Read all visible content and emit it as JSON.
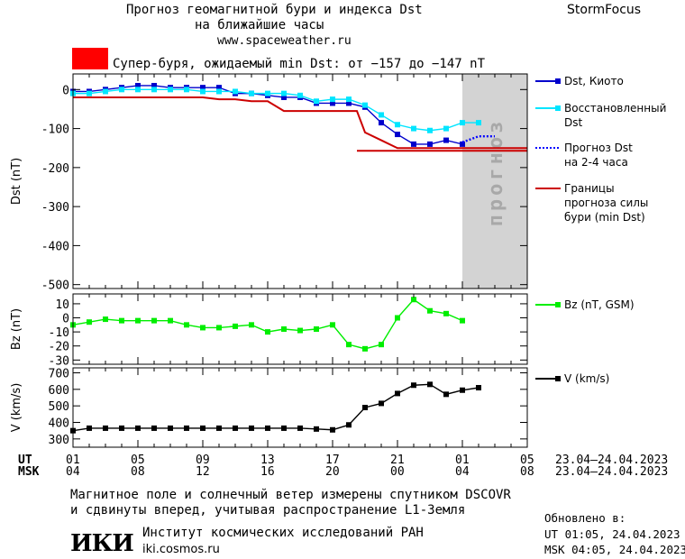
{
  "header": {
    "title_line1": "Прогноз геомагнитной бури и индекса Dst",
    "title_line2": "на ближайшие часы",
    "website": "www.spaceweather.ru",
    "brand": "StormFocus"
  },
  "alert": {
    "color": "#ff0000",
    "text": "Супер-буря, ожидаемый min Dst: от −157 до −147 nT"
  },
  "forecast_band_label": "прогноз",
  "legend": {
    "dst_kyoto": "Dst, Киото",
    "dst_restored_1": "Восстановленный",
    "dst_restored_2": "Dst",
    "dst_forecast_1": "Прогноз Dst",
    "dst_forecast_2": "на 2-4 часа",
    "bounds_1": "Границы",
    "bounds_2": "прогноза силы",
    "bounds_3": "бури (min Dst)",
    "bz": "Bz (nT, GSM)",
    "v": "V (km/s)"
  },
  "time_axis": {
    "ut_label": "UT",
    "msk_label": "MSK",
    "ut_ticks": [
      "01",
      "05",
      "09",
      "13",
      "17",
      "21",
      "01",
      "05"
    ],
    "msk_ticks": [
      "04",
      "08",
      "12",
      "16",
      "20",
      "00",
      "04",
      "08"
    ],
    "ut_range": "23.04–24.04.2023",
    "msk_range": "23.04–24.04.2023"
  },
  "footer": {
    "note_line1": "Магнитное поле и солнечный ветер измерены спутником DSCOVR",
    "note_line2": "и сдвинуты вперед, учитывая распространение L1-Земля",
    "logo_text": "ИКИ",
    "institute": "Институт космических исследований РАН",
    "institute_url": "iki.cosmos.ru",
    "updated_label": "Обновлено в:",
    "updated_ut": "UT  01:05, 24.04.2023",
    "updated_msk": "MSK 04:05, 24.04.2023"
  },
  "chart_data": [
    {
      "type": "line",
      "ylabel": "Dst (nT)",
      "ylim": [
        -510,
        40
      ],
      "yticks": [
        0,
        -100,
        -200,
        -300,
        -400,
        -500
      ],
      "x_unit": "hours since 23.04 01 UT",
      "xlim": [
        0,
        28
      ],
      "forecast_shade": [
        24,
        28
      ],
      "series": [
        {
          "name": "Dst, Киото",
          "color": "#0000cc",
          "marker": "square",
          "x": [
            0,
            1,
            2,
            3,
            4,
            5,
            6,
            7,
            8,
            9,
            10,
            11,
            12,
            13,
            14,
            15,
            16,
            17,
            18,
            19,
            20,
            21,
            22,
            23,
            24
          ],
          "y": [
            -5,
            -5,
            0,
            5,
            10,
            10,
            5,
            5,
            5,
            5,
            -10,
            -10,
            -15,
            -20,
            -20,
            -35,
            -35,
            -35,
            -45,
            -85,
            -115,
            -140,
            -140,
            -130,
            -140
          ]
        },
        {
          "name": "Восстановленный Dst",
          "color": "#00e5ff",
          "marker": "square",
          "x": [
            0,
            1,
            2,
            3,
            4,
            5,
            6,
            7,
            8,
            9,
            10,
            11,
            12,
            13,
            14,
            15,
            16,
            17,
            18,
            19,
            20,
            21,
            22,
            23,
            24,
            25
          ],
          "y": [
            -10,
            -10,
            -5,
            0,
            0,
            0,
            0,
            0,
            -5,
            -5,
            -5,
            -10,
            -10,
            -10,
            -15,
            -30,
            -25,
            -25,
            -40,
            -65,
            -90,
            -100,
            -105,
            -100,
            -85,
            -85
          ]
        },
        {
          "name": "Прогноз Dst на 2-4 часа",
          "color": "#0000ff",
          "style": "dotted",
          "x": [
            24,
            25,
            26
          ],
          "y": [
            -135,
            -120,
            -120
          ]
        },
        {
          "name": "Границы прогноза силы бури (min Dst)",
          "color": "#cc0000",
          "style": "step",
          "x": [
            0,
            8,
            9,
            10,
            11,
            12,
            13,
            16,
            17,
            17.5,
            18,
            19,
            20,
            21,
            22,
            23,
            24,
            25,
            26,
            27,
            28
          ],
          "y": [
            -20,
            -20,
            -25,
            -25,
            -30,
            -30,
            -55,
            -55,
            -55,
            -55,
            -110,
            -130,
            -150,
            -150,
            -150,
            -150,
            -150,
            -150,
            -150,
            -150,
            -150
          ]
        },
        {
          "name": "lower bound",
          "color": "#cc0000",
          "style": "flat",
          "x": [
            17.5,
            28
          ],
          "y": [
            -157,
            -157
          ]
        }
      ]
    },
    {
      "type": "line",
      "ylabel": "Bz (nT)",
      "ylim": [
        -33,
        17
      ],
      "yticks": [
        10,
        0,
        -10,
        -20,
        -30
      ],
      "series": [
        {
          "name": "Bz (nT, GSM)",
          "color": "#00ee00",
          "marker": "square",
          "x": [
            0,
            1,
            2,
            3,
            4,
            5,
            6,
            7,
            8,
            9,
            10,
            11,
            12,
            13,
            14,
            15,
            16,
            17,
            18,
            19,
            20,
            21,
            22,
            23,
            24,
            25
          ],
          "y": [
            -5,
            -3,
            -1,
            -2,
            -2,
            -2,
            -2,
            -5,
            -7,
            -7,
            -6,
            -5,
            -10,
            -8,
            -9,
            -8,
            -5,
            -19,
            -22,
            -19,
            0,
            13,
            5,
            3,
            -2,
            null
          ]
        }
      ]
    },
    {
      "type": "line",
      "ylabel": "V (km/s)",
      "ylim": [
        250,
        730
      ],
      "yticks": [
        700,
        600,
        500,
        400,
        300
      ],
      "series": [
        {
          "name": "V (km/s)",
          "color": "#000000",
          "marker": "square",
          "x": [
            0,
            1,
            2,
            3,
            4,
            5,
            6,
            7,
            8,
            9,
            10,
            11,
            12,
            13,
            14,
            15,
            16,
            17,
            18,
            19,
            20,
            21,
            22,
            23,
            24,
            25
          ],
          "y": [
            350,
            365,
            365,
            365,
            365,
            365,
            365,
            365,
            365,
            365,
            365,
            365,
            365,
            365,
            365,
            360,
            355,
            385,
            490,
            515,
            575,
            625,
            630,
            570,
            595,
            610
          ]
        }
      ]
    }
  ]
}
